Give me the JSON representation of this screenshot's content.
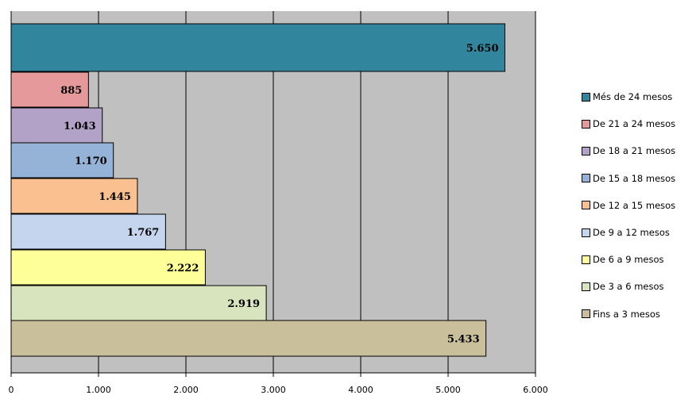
{
  "chart_data": {
    "type": "bar",
    "orientation": "horizontal",
    "title": "",
    "xlabel": "",
    "ylabel": "",
    "xlim": [
      0,
      6000
    ],
    "x_ticks": [
      {
        "value": 0,
        "label": "0"
      },
      {
        "value": 1000,
        "label": "1.000"
      },
      {
        "value": 2000,
        "label": "2.000"
      },
      {
        "value": 3000,
        "label": "3.000"
      },
      {
        "value": 4000,
        "label": "4.000"
      },
      {
        "value": 5000,
        "label": "5.000"
      },
      {
        "value": 6000,
        "label": "6.000"
      }
    ],
    "grid": true,
    "legend_position": "right",
    "series": [
      {
        "name": "Més de 24 mesos",
        "value": 5650,
        "label": "5.650",
        "color": "#31859c"
      },
      {
        "name": "De 21 a 24 mesos",
        "value": 885,
        "label": "885",
        "color": "#e6999b"
      },
      {
        "name": "De 18 a 21 mesos",
        "value": 1043,
        "label": "1.043",
        "color": "#b3a2c7"
      },
      {
        "name": "De 15 a 18 mesos",
        "value": 1170,
        "label": "1.170",
        "color": "#95b3d7"
      },
      {
        "name": "De 12 a 15 mesos",
        "value": 1445,
        "label": "1.445",
        "color": "#fac090"
      },
      {
        "name": "De 9 a 12 mesos",
        "value": 1767,
        "label": "1.767",
        "color": "#c5d5ee"
      },
      {
        "name": "De 6 a 9 mesos",
        "value": 2222,
        "label": "2.222",
        "color": "#ffff99"
      },
      {
        "name": "De 3 a 6 mesos",
        "value": 2919,
        "label": "2.919",
        "color": "#d7e4bd"
      },
      {
        "name": "Fins a 3 mesos",
        "value": 5433,
        "label": "5.433",
        "color": "#c9bf9a"
      }
    ]
  },
  "colors": {
    "plot_background": "#c0c0c0",
    "gridline": "#000000",
    "bar_border": "#000000"
  }
}
